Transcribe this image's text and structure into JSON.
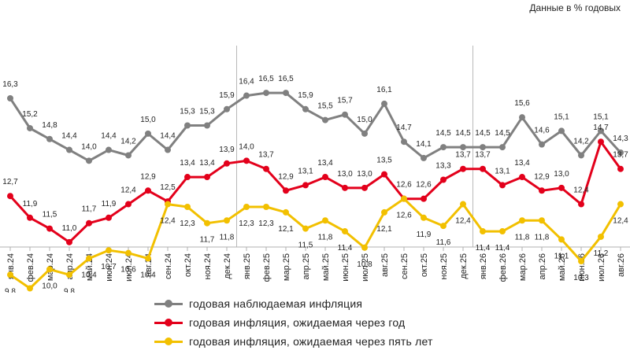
{
  "unit_note": "Данные в % годовых",
  "chart_data": {
    "type": "line",
    "categories": [
      "янв.24",
      "фев.24",
      "мар.24",
      "апр.24",
      "май.24",
      "июн.24",
      "июл.24",
      "авг.24",
      "сен.24",
      "окт.24",
      "ноя.24",
      "дек.24",
      "янв.25",
      "фев.25",
      "мар.25",
      "апр.25",
      "май.25",
      "июн.25",
      "июл.25",
      "авг.25",
      "сен.25",
      "окт.25",
      "ноя.25",
      "дек.25",
      "янв.26",
      "фев.26",
      "мар.26",
      "апр.26",
      "май.26",
      "июн.26",
      "июл.26",
      "авг.26"
    ],
    "series": [
      {
        "name": "годовая наблюдаемая  инфляция",
        "color": "#808080",
        "values": [
          16.3,
          15.2,
          14.8,
          14.4,
          14.0,
          14.4,
          14.2,
          15.0,
          14.4,
          15.3,
          15.3,
          15.9,
          16.4,
          16.5,
          16.5,
          15.9,
          15.5,
          15.7,
          15.0,
          16.1,
          14.7,
          14.1,
          14.5,
          14.5,
          14.5,
          14.5,
          15.6,
          14.6,
          15.1,
          14.2,
          15.1,
          14.3
        ]
      },
      {
        "name": "годовая инфляция,  ожидаемая  через год",
        "color": "#e3001b",
        "values": [
          12.7,
          11.9,
          11.5,
          11.0,
          11.7,
          11.9,
          12.4,
          12.9,
          12.5,
          13.4,
          13.4,
          13.9,
          14.0,
          13.7,
          12.9,
          13.1,
          13.4,
          13.0,
          13.0,
          13.5,
          12.6,
          12.6,
          13.3,
          13.7,
          13.7,
          13.1,
          13.4,
          12.9,
          13.0,
          12.4,
          14.7,
          13.7
        ]
      },
      {
        "name": "годовая инфляция,  ожидаемая  через пять лет",
        "color": "#f2c000",
        "values": [
          9.8,
          9.3,
          10.0,
          9.8,
          10.4,
          10.7,
          10.6,
          10.4,
          12.4,
          12.3,
          11.7,
          11.8,
          12.3,
          12.3,
          12.1,
          11.5,
          11.8,
          11.4,
          10.8,
          12.1,
          12.6,
          11.9,
          11.6,
          12.4,
          11.4,
          11.4,
          11.8,
          11.8,
          11.1,
          10.3,
          11.2,
          12.4
        ]
      }
    ],
    "value_labels": {
      "observed": [
        "16,3",
        "15,2",
        "14,8",
        "14,4",
        "14,0",
        "14,4",
        "14,2",
        "15,0",
        "14,4",
        "15,3",
        "15,3",
        "15,9",
        "16,4",
        "16,5",
        "16,5",
        "15,9",
        "15,5",
        "15,7",
        "15,0",
        "16,1",
        "14,7",
        "14,1",
        "14,5",
        "14,5",
        "14,5",
        "14,5",
        "15,6",
        "14,6",
        "15,1",
        "14,2",
        "15,1",
        "14,3"
      ],
      "one_year": [
        "12,7",
        "11,9",
        "11,5",
        "11,0",
        "11,7",
        "11,9",
        "12,4",
        "12,9",
        "12,5",
        "13,4",
        "13,4",
        "13,9",
        "14,0",
        "13,7",
        "12,9",
        "13,1",
        "13,4",
        "13,0",
        "13,0",
        "13,5",
        "12,6",
        "12,6",
        "13,3",
        "13,7",
        "13,7",
        "13,1",
        "13,4",
        "12,9",
        "13,0",
        "12,4",
        "14,7",
        "13,7"
      ],
      "five_year": [
        "9,8",
        "9,3",
        "10,0",
        "9,8",
        "10,4",
        "10,7",
        "10,6",
        "10,4",
        "12,4",
        "12,3",
        "11,7",
        "11,8",
        "12,3",
        "12,3",
        "12,1",
        "11,5",
        "11,8",
        "11,4",
        "10,8",
        "12,1",
        "12,6",
        "11,9",
        "11,6",
        "12,4",
        "11,4",
        "11,4",
        "11,8",
        "11,8",
        "11,1",
        "10,3",
        "11,2",
        "12,4"
      ]
    },
    "year_separators_after": [
      "дек.24",
      "дек.25"
    ],
    "ylim": [
      8.5,
      17.2
    ],
    "grid": false,
    "legend_position": "bottom"
  }
}
